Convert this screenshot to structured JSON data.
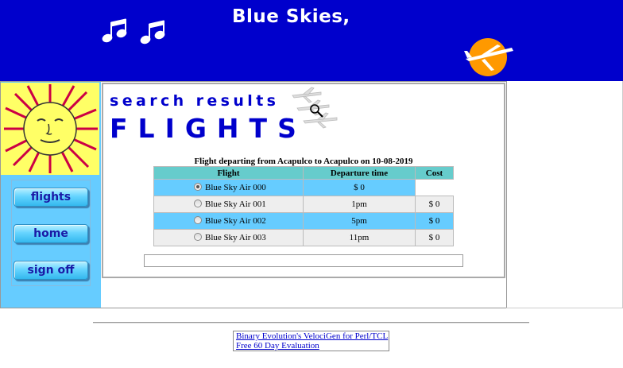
{
  "banner": {
    "title": "Blue Skies,"
  },
  "sidebar": {
    "nav": [
      {
        "label": "flights"
      },
      {
        "label": "home"
      },
      {
        "label": "sign off"
      }
    ]
  },
  "main": {
    "heading_small": "search results",
    "heading_large": "FLIGHTS",
    "caption": "Flight departing from Acapulco to Acapulco on 10-08-2019",
    "columns": [
      "Flight",
      "Departure time",
      "Cost"
    ],
    "rows": [
      {
        "flight": "Blue Sky Air 000",
        "time": "$ 0",
        "cost": "",
        "selected": true
      },
      {
        "flight": "Blue Sky Air 001",
        "time": "1pm",
        "cost": "$ 0",
        "selected": false
      },
      {
        "flight": "Blue Sky Air 002",
        "time": "5pm",
        "cost": "$ 0",
        "selected": false
      },
      {
        "flight": "Blue Sky Air 003",
        "time": "11pm",
        "cost": "$ 0",
        "selected": false
      }
    ]
  },
  "footer": {
    "link1": "Binary Evolution's VelociGen for Perl/TCL",
    "link2": "Free 60 Day Evaluation"
  },
  "colors": {
    "banner": "#0000cc",
    "sidebar": "#66ccff",
    "header_row": "#66cccc"
  }
}
